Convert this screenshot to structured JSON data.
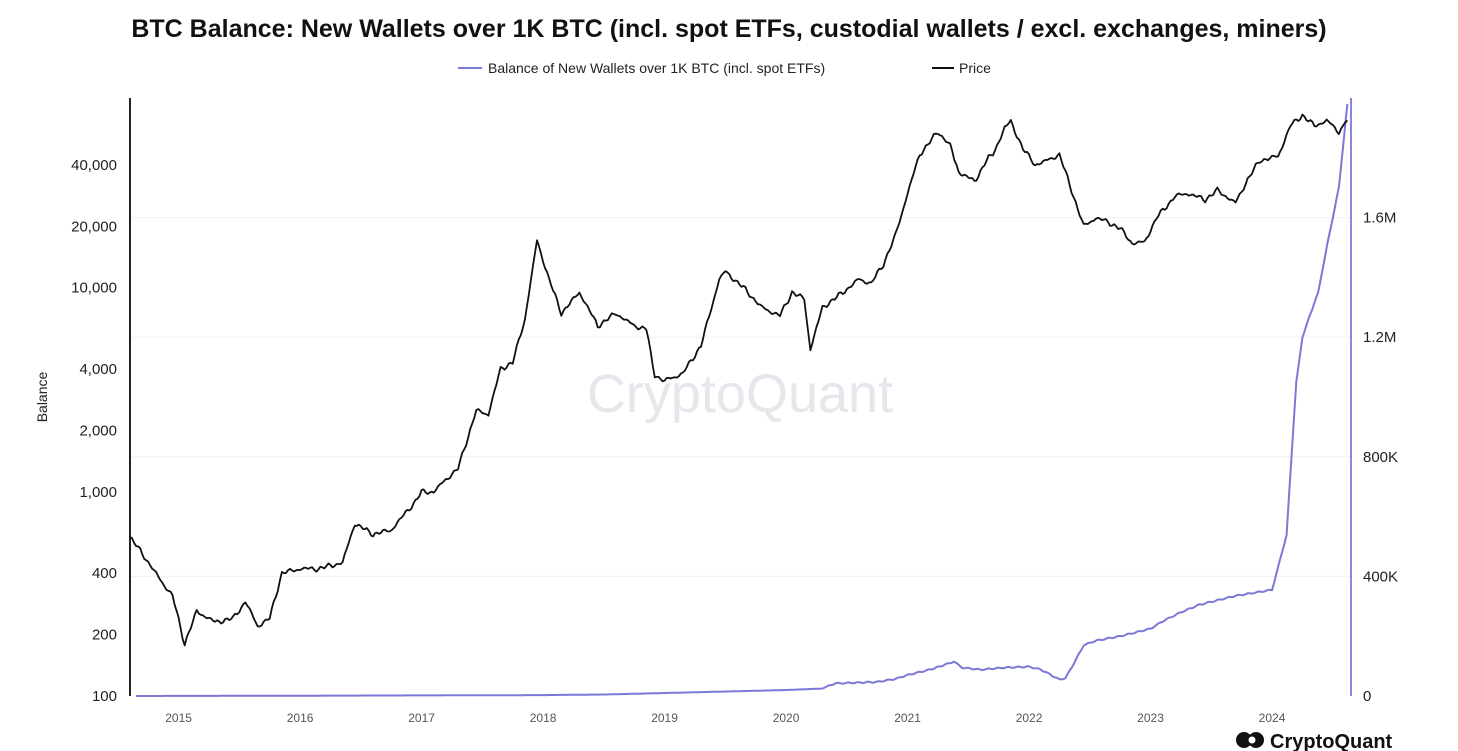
{
  "chart_data": {
    "type": "line",
    "title": "BTC Balance: New Wallets over 1K BTC (incl. spot ETFs, custodial wallets / excl. exchanges, miners)",
    "ylabel": "Balance",
    "y_left": {
      "scale": "log",
      "range": [
        100,
        85000
      ],
      "ticks": [
        100,
        200,
        400,
        1000,
        2000,
        4000,
        10000,
        20000,
        40000
      ],
      "tick_labels": [
        "100",
        "200",
        "400",
        "1,000",
        "2,000",
        "4,000",
        "10,000",
        "20,000",
        "40,000"
      ]
    },
    "y_right": {
      "scale": "linear",
      "range": [
        0,
        2000000
      ],
      "ticks": [
        0,
        400000,
        800000,
        1200000,
        1600000
      ],
      "tick_labels": [
        "0",
        "400K",
        "800K",
        "1.2M",
        "1.6M"
      ]
    },
    "x": {
      "range": [
        2014.6,
        2024.65
      ],
      "ticks": [
        2015,
        2016,
        2017,
        2018,
        2019,
        2020,
        2021,
        2022,
        2023,
        2024
      ],
      "tick_labels": [
        "2015",
        "2016",
        "2017",
        "2018",
        "2019",
        "2020",
        "2021",
        "2022",
        "2023",
        "2024"
      ]
    },
    "legend_position": "top-center",
    "series": [
      {
        "name": "Balance of New Wallets over 1K BTC (incl. spot ETFs)",
        "axis": "right",
        "color": "#7b78d6",
        "points": [
          [
            2014.65,
            0
          ],
          [
            2016,
            1000
          ],
          [
            2017,
            2000
          ],
          [
            2018,
            3000
          ],
          [
            2018.5,
            5000
          ],
          [
            2019,
            10000
          ],
          [
            2019.5,
            15000
          ],
          [
            2020,
            20000
          ],
          [
            2020.3,
            25000
          ],
          [
            2020.4,
            42000
          ],
          [
            2020.75,
            47000
          ],
          [
            2020.9,
            57000
          ],
          [
            2021.0,
            70000
          ],
          [
            2021.2,
            90000
          ],
          [
            2021.38,
            115000
          ],
          [
            2021.45,
            95000
          ],
          [
            2021.6,
            88000
          ],
          [
            2021.8,
            95000
          ],
          [
            2022.0,
            98000
          ],
          [
            2022.1,
            88000
          ],
          [
            2022.25,
            55000
          ],
          [
            2022.3,
            60000
          ],
          [
            2022.35,
            95000
          ],
          [
            2022.45,
            170000
          ],
          [
            2022.55,
            185000
          ],
          [
            2022.75,
            200000
          ],
          [
            2022.9,
            215000
          ],
          [
            2023.0,
            225000
          ],
          [
            2023.1,
            250000
          ],
          [
            2023.25,
            280000
          ],
          [
            2023.4,
            305000
          ],
          [
            2023.55,
            320000
          ],
          [
            2023.7,
            335000
          ],
          [
            2023.85,
            345000
          ],
          [
            2024.0,
            355000
          ],
          [
            2024.05,
            430000
          ],
          [
            2024.12,
            540000
          ],
          [
            2024.16,
            800000
          ],
          [
            2024.2,
            1050000
          ],
          [
            2024.25,
            1200000
          ],
          [
            2024.3,
            1260000
          ],
          [
            2024.38,
            1350000
          ],
          [
            2024.45,
            1500000
          ],
          [
            2024.55,
            1700000
          ],
          [
            2024.6,
            1900000
          ],
          [
            2024.62,
            1980000
          ]
        ]
      },
      {
        "name": "Price",
        "axis": "left",
        "color": "#111111",
        "points": [
          [
            2014.6,
            600
          ],
          [
            2014.7,
            500
          ],
          [
            2014.85,
            370
          ],
          [
            2014.95,
            310
          ],
          [
            2015.05,
            180
          ],
          [
            2015.15,
            260
          ],
          [
            2015.3,
            230
          ],
          [
            2015.45,
            240
          ],
          [
            2015.55,
            290
          ],
          [
            2015.65,
            220
          ],
          [
            2015.75,
            240
          ],
          [
            2015.85,
            400
          ],
          [
            2016.0,
            420
          ],
          [
            2016.15,
            420
          ],
          [
            2016.35,
            450
          ],
          [
            2016.45,
            700
          ],
          [
            2016.6,
            620
          ],
          [
            2016.75,
            650
          ],
          [
            2016.95,
            900
          ],
          [
            2017.0,
            1000
          ],
          [
            2017.1,
            1000
          ],
          [
            2017.2,
            1150
          ],
          [
            2017.3,
            1300
          ],
          [
            2017.45,
            2500
          ],
          [
            2017.55,
            2400
          ],
          [
            2017.65,
            4000
          ],
          [
            2017.75,
            4300
          ],
          [
            2017.85,
            7000
          ],
          [
            2017.95,
            17000
          ],
          [
            2018.05,
            11000
          ],
          [
            2018.15,
            7500
          ],
          [
            2018.3,
            9500
          ],
          [
            2018.45,
            6500
          ],
          [
            2018.6,
            7500
          ],
          [
            2018.75,
            6500
          ],
          [
            2018.85,
            6300
          ],
          [
            2018.92,
            3700
          ],
          [
            2019.0,
            3500
          ],
          [
            2019.15,
            3800
          ],
          [
            2019.3,
            5200
          ],
          [
            2019.45,
            11000
          ],
          [
            2019.5,
            12000
          ],
          [
            2019.65,
            10000
          ],
          [
            2019.8,
            8000
          ],
          [
            2019.95,
            7300
          ],
          [
            2020.05,
            9500
          ],
          [
            2020.15,
            8800
          ],
          [
            2020.2,
            5000
          ],
          [
            2020.3,
            8000
          ],
          [
            2020.45,
            9300
          ],
          [
            2020.6,
            11000
          ],
          [
            2020.7,
            10500
          ],
          [
            2020.8,
            13000
          ],
          [
            2020.9,
            18000
          ],
          [
            2021.0,
            29000
          ],
          [
            2021.1,
            45000
          ],
          [
            2021.25,
            58000
          ],
          [
            2021.35,
            50000
          ],
          [
            2021.42,
            37000
          ],
          [
            2021.55,
            33000
          ],
          [
            2021.65,
            42000
          ],
          [
            2021.72,
            47000
          ],
          [
            2021.8,
            61000
          ],
          [
            2021.85,
            65000
          ],
          [
            2021.95,
            48000
          ],
          [
            2022.05,
            40000
          ],
          [
            2022.15,
            42000
          ],
          [
            2022.25,
            45000
          ],
          [
            2022.35,
            30000
          ],
          [
            2022.45,
            20000
          ],
          [
            2022.55,
            22000
          ],
          [
            2022.65,
            21000
          ],
          [
            2022.75,
            19500
          ],
          [
            2022.85,
            16500
          ],
          [
            2022.95,
            16700
          ],
          [
            2023.05,
            22000
          ],
          [
            2023.2,
            28000
          ],
          [
            2023.3,
            29000
          ],
          [
            2023.45,
            27000
          ],
          [
            2023.55,
            30000
          ],
          [
            2023.7,
            26000
          ],
          [
            2023.8,
            34000
          ],
          [
            2023.9,
            42000
          ],
          [
            2024.05,
            44000
          ],
          [
            2024.15,
            62000
          ],
          [
            2024.25,
            70000
          ],
          [
            2024.35,
            62000
          ],
          [
            2024.45,
            66000
          ],
          [
            2024.55,
            58000
          ],
          [
            2024.62,
            66000
          ]
        ]
      }
    ]
  },
  "watermark": "CryptoQuant",
  "brand": {
    "name": "CryptoQuant",
    "logo_icon": "cryptoquant-logo-icon"
  }
}
